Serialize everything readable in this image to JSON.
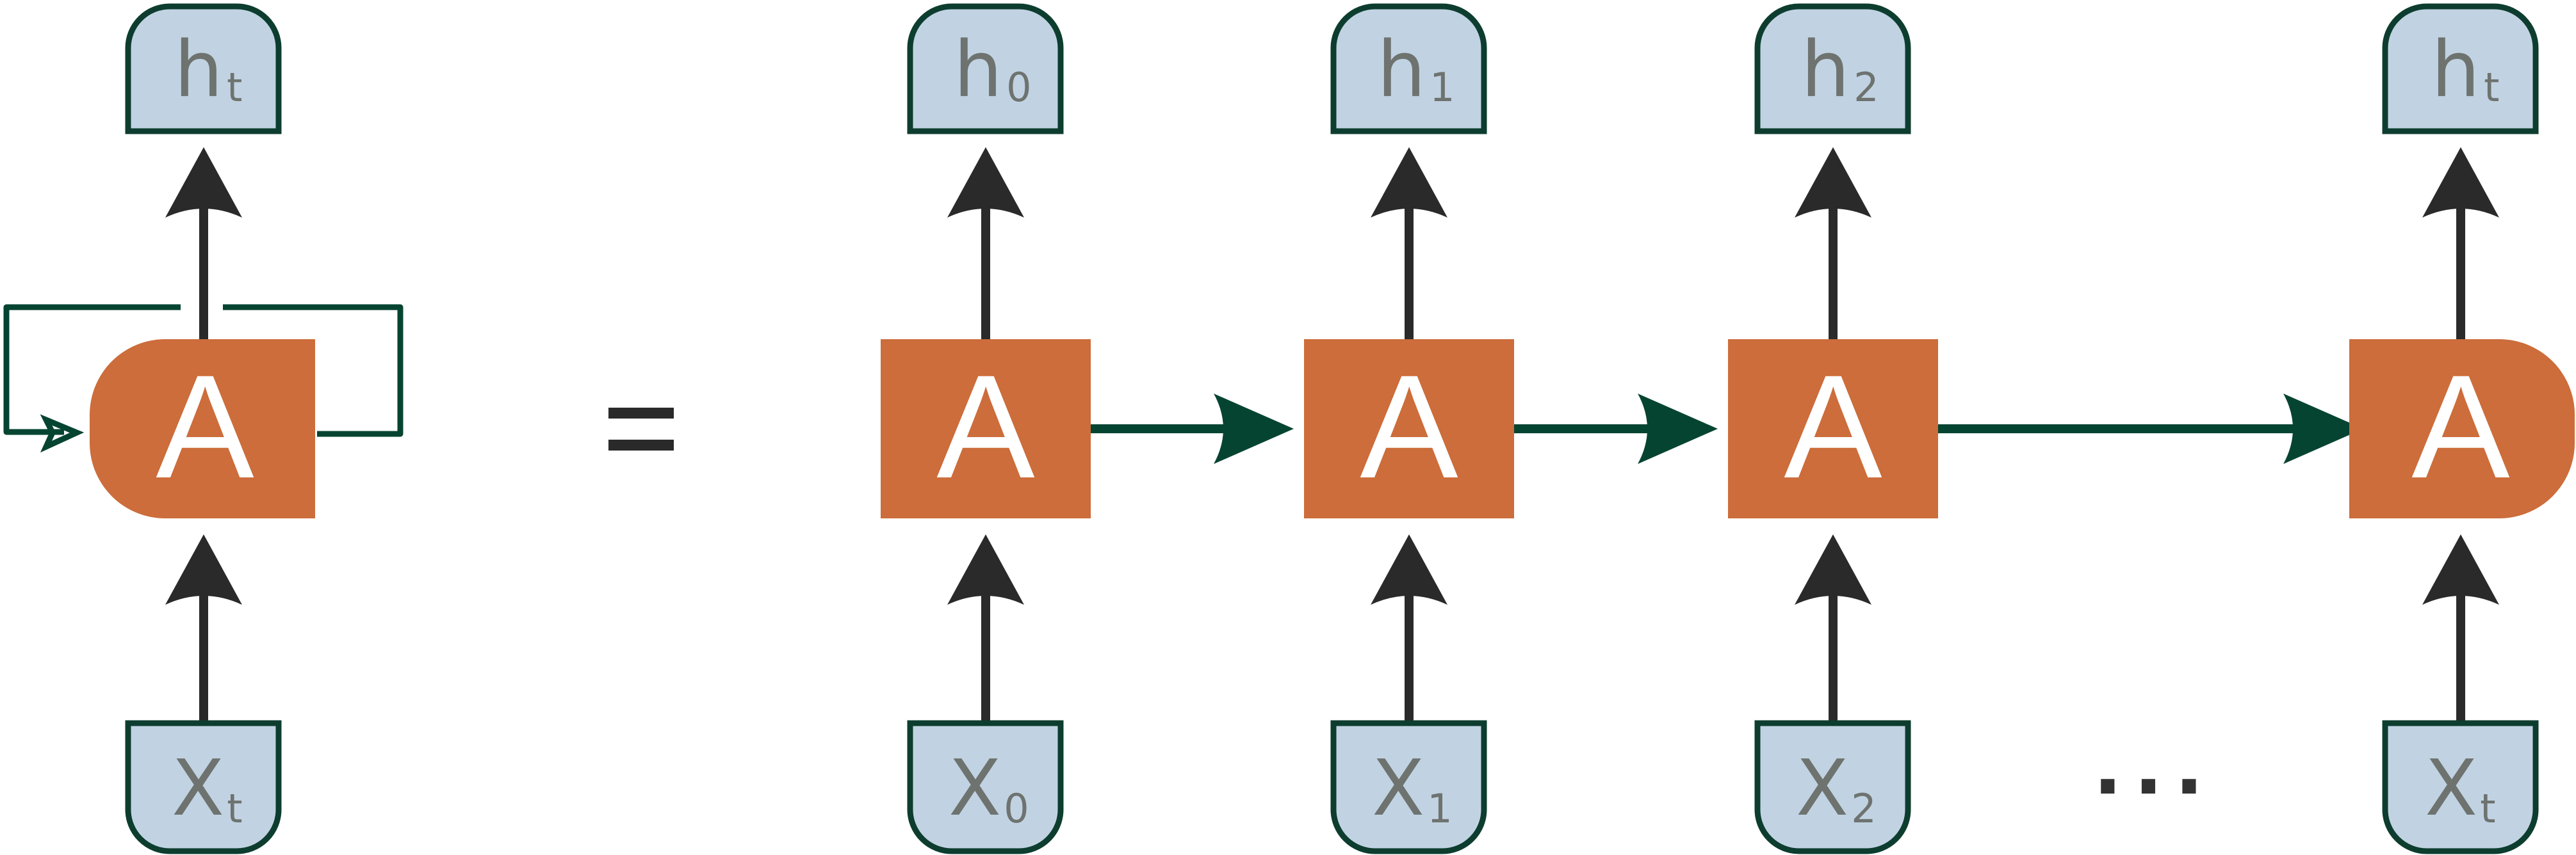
{
  "colors": {
    "cell_fill": "#cc6d3b",
    "io_fill": "#c1d3e2",
    "io_stroke": "#0d3d2f",
    "arrow_black": "#2a2a2a",
    "arrow_green": "#064432",
    "io_text": "#6e7370"
  },
  "rolled": {
    "cell_label": "A",
    "output": {
      "main": "h",
      "sub": "t"
    },
    "input": {
      "main": "X",
      "sub": "t"
    }
  },
  "equals_symbol": "=",
  "unrolled": [
    {
      "cell_label": "A",
      "output": {
        "main": "h",
        "sub": "0"
      },
      "input": {
        "main": "X",
        "sub": "0"
      }
    },
    {
      "cell_label": "A",
      "output": {
        "main": "h",
        "sub": "1"
      },
      "input": {
        "main": "X",
        "sub": "1"
      }
    },
    {
      "cell_label": "A",
      "output": {
        "main": "h",
        "sub": "2"
      },
      "input": {
        "main": "X",
        "sub": "2"
      }
    },
    {
      "cell_label": "A",
      "output": {
        "main": "h",
        "sub": "t"
      },
      "input": {
        "main": "X",
        "sub": "t"
      }
    }
  ],
  "ellipsis": "..."
}
